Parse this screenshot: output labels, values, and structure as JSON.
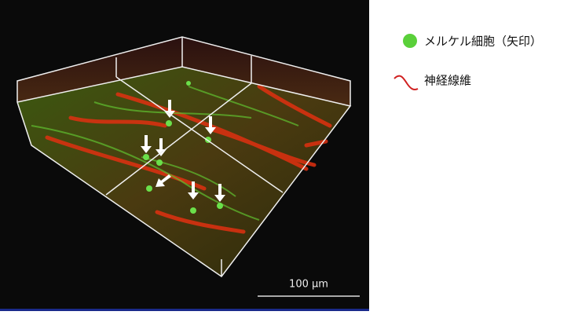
{
  "legend": {
    "items": [
      {
        "label": "メルケル細胞（矢印）"
      },
      {
        "label": "神経線維"
      }
    ]
  },
  "image": {
    "scale_bar": "100 µm"
  }
}
